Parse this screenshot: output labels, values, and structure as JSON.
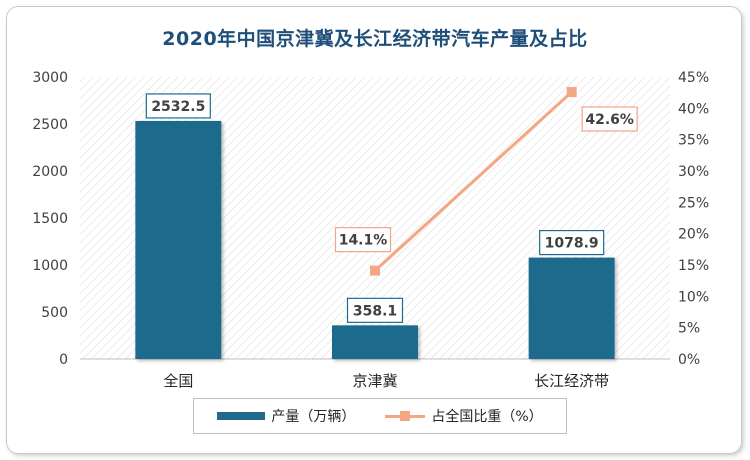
{
  "chart_data": {
    "type": "bar+line",
    "title": "2020年中国京津冀及长江经济带汽车产量及占比",
    "categories": [
      "全国",
      "京津冀",
      "长江经济带"
    ],
    "series": [
      {
        "name": "产量（万辆）",
        "type": "bar",
        "axis": "left",
        "values": [
          2532.5,
          358.1,
          1078.9
        ],
        "labels": [
          "2532.5",
          "358.1",
          "1078.9"
        ],
        "color": "#1f6a8c"
      },
      {
        "name": "占全国比重（%）",
        "type": "line",
        "axis": "right",
        "values": [
          null,
          14.1,
          42.6
        ],
        "labels": [
          null,
          "14.1%",
          "42.6%"
        ],
        "color": "#f4a582"
      }
    ],
    "y_left": {
      "min": 0,
      "max": 3000,
      "step": 500,
      "ticks": [
        "0",
        "500",
        "1000",
        "1500",
        "2000",
        "2500",
        "3000"
      ]
    },
    "y_right": {
      "min": 0,
      "max": 45,
      "step": 5,
      "ticks": [
        "0%",
        "5%",
        "10%",
        "15%",
        "20%",
        "25%",
        "30%",
        "35%",
        "40%",
        "45%"
      ]
    },
    "legend_position": "bottom",
    "plot_background": "hatched"
  }
}
